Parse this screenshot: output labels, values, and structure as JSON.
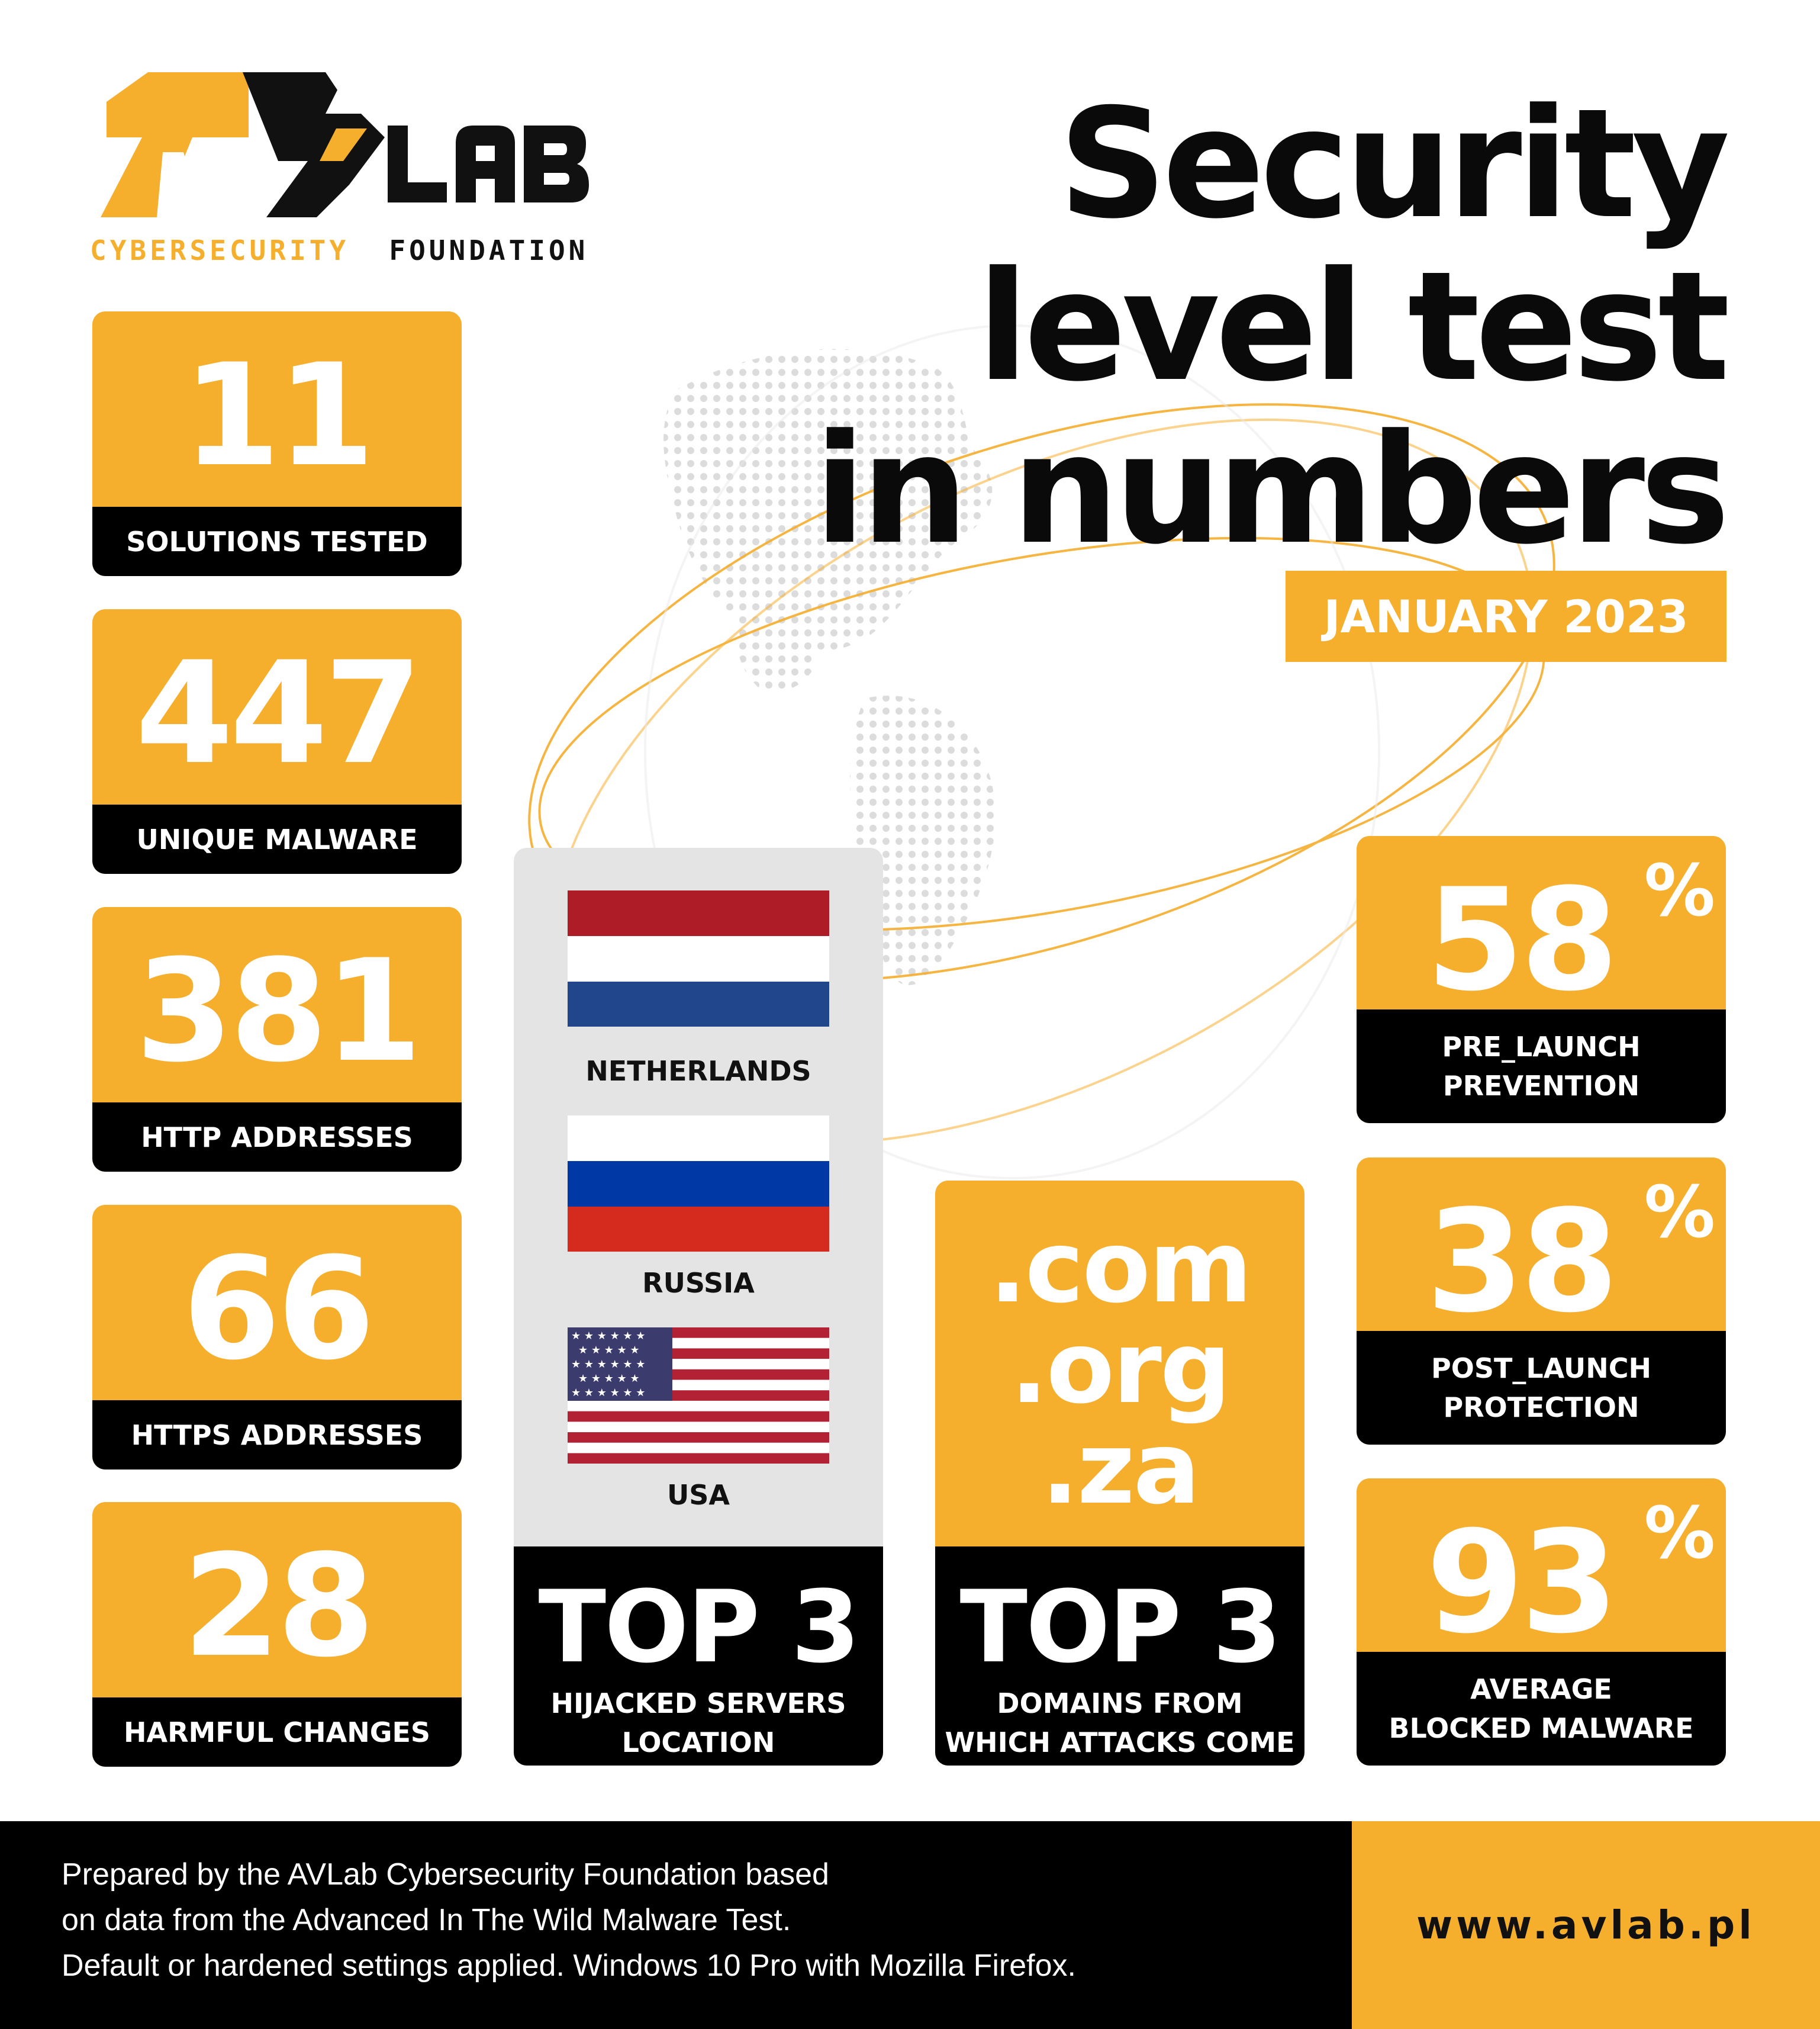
{
  "brand": {
    "logo_text": "AV LAB",
    "tagline_part1": "CYBERSECURITY",
    "tagline_part2": "FOUNDATION",
    "accent_color": "#F6AE2D",
    "dark_color": "#000000"
  },
  "title": {
    "line1": "Security",
    "line2": "level test",
    "line3": "in numbers",
    "date": "JANUARY 2023"
  },
  "stats_left": [
    {
      "value": "11",
      "label": "SOLUTIONS TESTED"
    },
    {
      "value": "447",
      "label": "UNIQUE MALWARE"
    },
    {
      "value": "381",
      "label": "HTTP ADDRESSES"
    },
    {
      "value": "66",
      "label": "HTTPS ADDRESSES"
    },
    {
      "value": "28",
      "label": "HARMFUL CHANGES"
    }
  ],
  "servers": {
    "countries": [
      {
        "name": "NETHERLANDS",
        "flag": "netherlands-flag-icon"
      },
      {
        "name": "RUSSIA",
        "flag": "russia-flag-icon"
      },
      {
        "name": "USA",
        "flag": "usa-flag-icon"
      }
    ],
    "heading": "TOP 3",
    "caption_line1": "HIJACKED SERVERS",
    "caption_line2": "LOCATION"
  },
  "domains": {
    "items": [
      ".com",
      ".org",
      ".za"
    ],
    "heading": "TOP 3",
    "caption_line1": "DOMAINS FROM",
    "caption_line2": "WHICH ATTACKS COME"
  },
  "stats_right": [
    {
      "value": "58",
      "unit": "%",
      "label_line1": "PRE_LAUNCH",
      "label_line2": "PREVENTION"
    },
    {
      "value": "38",
      "unit": "%",
      "label_line1": "POST_LAUNCH",
      "label_line2": "PROTECTION"
    },
    {
      "value": "93",
      "unit": "%",
      "label_line1": "AVERAGE",
      "label_line2": "BLOCKED MALWARE"
    }
  ],
  "footer": {
    "line1": "Prepared by the AVLab Cybersecurity Foundation based",
    "line2": "on data from the Advanced In The Wild Malware Test.",
    "line3": "Default or hardened settings applied. Windows 10 Pro with Mozilla Firefox.",
    "url": "www.avlab.pl"
  }
}
